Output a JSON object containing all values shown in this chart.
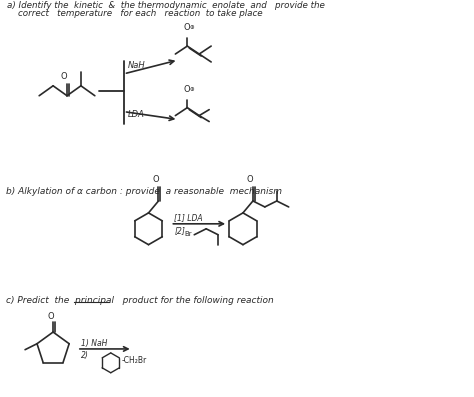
{
  "background_color": "#ffffff",
  "fig_width": 4.74,
  "fig_height": 3.97,
  "dpi": 100,
  "text_color": "#2a2a2a",
  "line_color": "#2a2a2a",
  "title_a_line1": "a) Identify the  kinetic  &  the thermodynamic  enolate  and   provide the",
  "title_a_line2": "    correct   temperature   for each   reaction  to take place",
  "title_b": "b) Alkylation of α carbon : provide  a reasonable  mechanism",
  "title_c": "c) Predict  the  principal   product for the following reaction",
  "label_NaH": "NaH",
  "label_LDA": "LDA",
  "label_1_LDA": "[1] LDA",
  "label_2_Br": "[2]",
  "label_Br": "Br",
  "label_1_NaH": "1) NaH",
  "label_2": "2)"
}
